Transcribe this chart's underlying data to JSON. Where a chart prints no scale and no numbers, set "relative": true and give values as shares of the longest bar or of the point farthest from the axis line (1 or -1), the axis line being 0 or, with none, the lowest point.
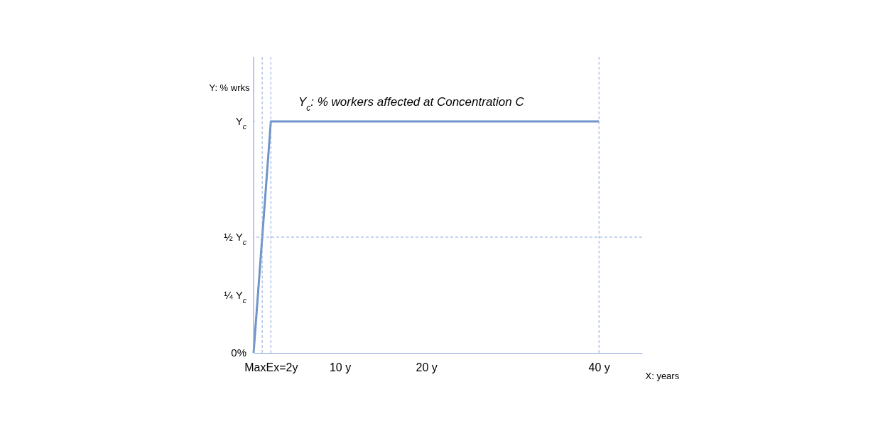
{
  "chart_data": {
    "type": "line",
    "xlabel": "X: years",
    "ylabel": "Y: % wrks",
    "x": [
      0,
      2,
      40
    ],
    "series": [
      {
        "color": "#6f94c8",
        "values": [
          0,
          1,
          1
        ]
      }
    ],
    "relative": true,
    "xlim": [
      0,
      45
    ],
    "xticks": [
      {
        "value": 2,
        "label": "MaxEx=2y"
      },
      {
        "value": 10,
        "label": "10 y"
      },
      {
        "value": 20,
        "label": "20 y"
      },
      {
        "value": 40,
        "label": "40 y"
      }
    ],
    "ref_lines": [
      {
        "axis": "x",
        "value": 1,
        "label": null,
        "color": "#8eaadb",
        "line_style": "dashed"
      },
      {
        "axis": "x",
        "value": 2,
        "label": null,
        "color": "#8eaadb",
        "line_style": "dashed"
      },
      {
        "axis": "x",
        "value": 40,
        "label": null,
        "color": "#8eaadb",
        "line_style": "dashed"
      },
      {
        "axis": "y",
        "value": 0.5,
        "label": null,
        "color": "#8eaadb",
        "line_style": "dashed"
      }
    ],
    "annotations": [
      "Y$_{c}$: % workers affected at Concentration C",
      {
        "text": "0%",
        "x": 0,
        "y": 0
      },
      {
        "text": "¼ Y$_{c}$",
        "x": 0.5,
        "y": 0.25
      },
      {
        "text": "½ Y$_{c}$",
        "x": 1,
        "y": 0.5
      },
      {
        "text": "Y$_{c}$",
        "x": 2,
        "y": 1
      }
    ],
    "grid": false,
    "line_style": "solid"
  }
}
